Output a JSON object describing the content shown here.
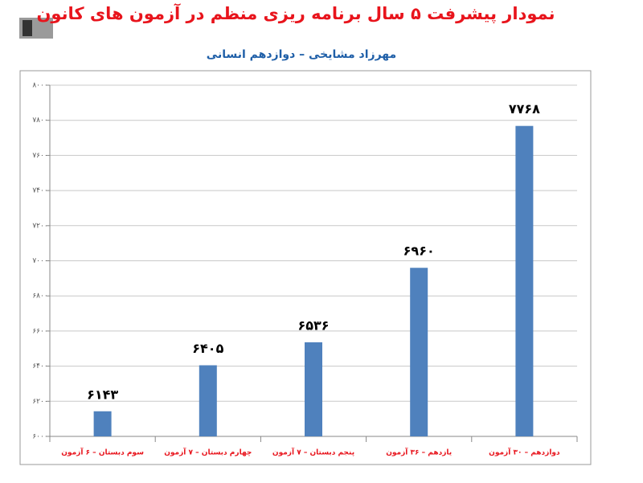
{
  "chart_data": {
    "type": "bar",
    "title": "نمودار پیشرفت ۵ سال برنامه ریزی منظم در آزمون های کانون",
    "subtitle": "مهرزاد مشایخی – دوازدهم انسانی",
    "categories": [
      "سوم دبستان – ۶ آزمون",
      "چهارم دبستان – ۷ آزمون",
      "پنجم دبستان – ۷ آزمون",
      "یازدهم – ۳۶ آزمون",
      "دوازدهم – ۳۰ آزمون"
    ],
    "values": [
      6143,
      6405,
      6536,
      6960,
      7768
    ],
    "value_labels": [
      "۶۱۴۳",
      "۶۴۰۵",
      "۶۵۳۶",
      "۶۹۶۰",
      "۷۷۶۸"
    ],
    "color": "#4f81bd",
    "ylim": [
      6000,
      8000
    ],
    "yticks": [
      {
        "value": 6000,
        "label": "۶۰۰۰"
      },
      {
        "value": 6200,
        "label": "۶۲۰۰"
      },
      {
        "value": 6400,
        "label": "۶۴۰۰"
      },
      {
        "value": 6600,
        "label": "۶۶۰۰"
      },
      {
        "value": 6800,
        "label": "۶۸۰۰"
      },
      {
        "value": 7000,
        "label": "۷۰۰۰"
      },
      {
        "value": 7200,
        "label": "۷۲۰۰"
      },
      {
        "value": 7400,
        "label": "۷۴۰۰"
      },
      {
        "value": 7600,
        "label": "۷۶۰۰"
      },
      {
        "value": 7800,
        "label": "۷۸۰۰"
      },
      {
        "value": 8000,
        "label": "۸۰۰۰"
      }
    ],
    "grid": true
  }
}
